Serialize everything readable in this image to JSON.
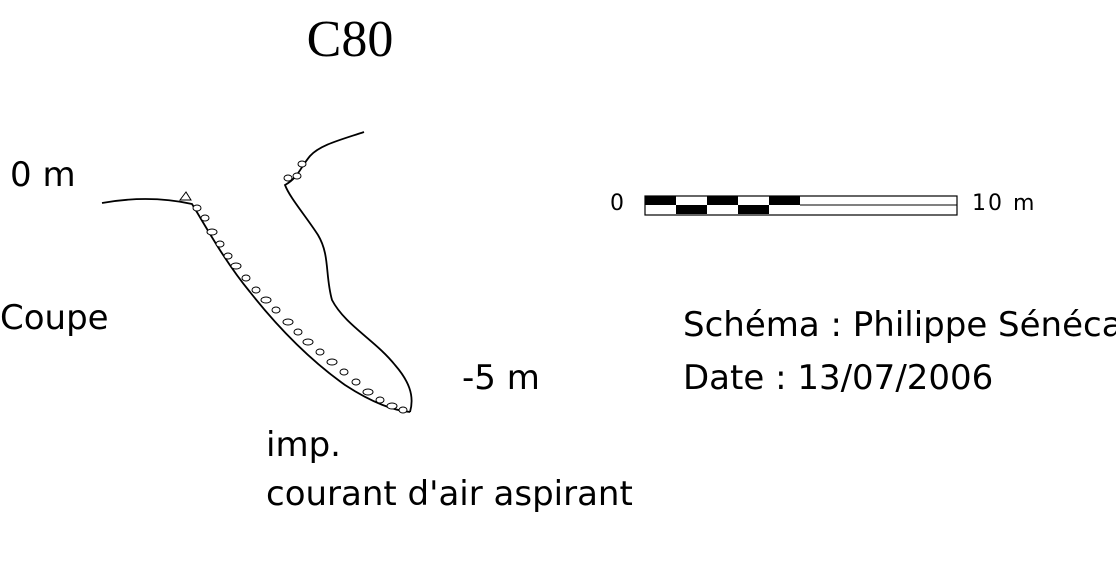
{
  "title": "C80",
  "depth_labels": {
    "top": "0 m",
    "bottom": "-5 m"
  },
  "section_label": "Coupe",
  "bottom_note": {
    "line1": "imp.",
    "line2": "courant d'air aspirant"
  },
  "scale": {
    "start": "0",
    "end": "10 m"
  },
  "credits": {
    "author": "Schéma : Philippe Sénécal",
    "date": "Date : 13/07/2006"
  }
}
